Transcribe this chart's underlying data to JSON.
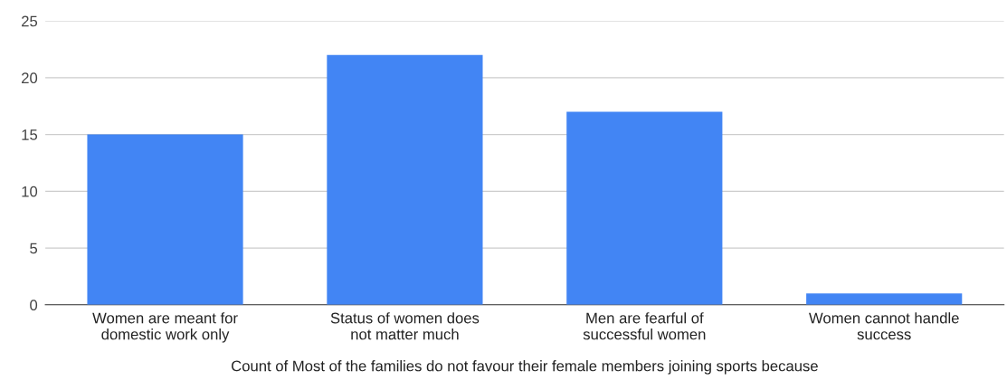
{
  "chart_data": {
    "type": "bar",
    "xlabel": "Count of Most of the families do not favour their female members joining sports because",
    "categories": [
      "Women are meant for\ndomestic work only",
      "Status of women does\nnot matter much",
      "Men are fearful of\nsuccessful women",
      "Women cannot handle\nsuccess"
    ],
    "values": [
      15,
      22,
      17,
      1
    ],
    "color": "#4285f4",
    "ylim": [
      0,
      25
    ],
    "yticks": [
      0,
      5,
      10,
      15,
      20,
      25
    ],
    "grid": "y",
    "legend": false
  }
}
